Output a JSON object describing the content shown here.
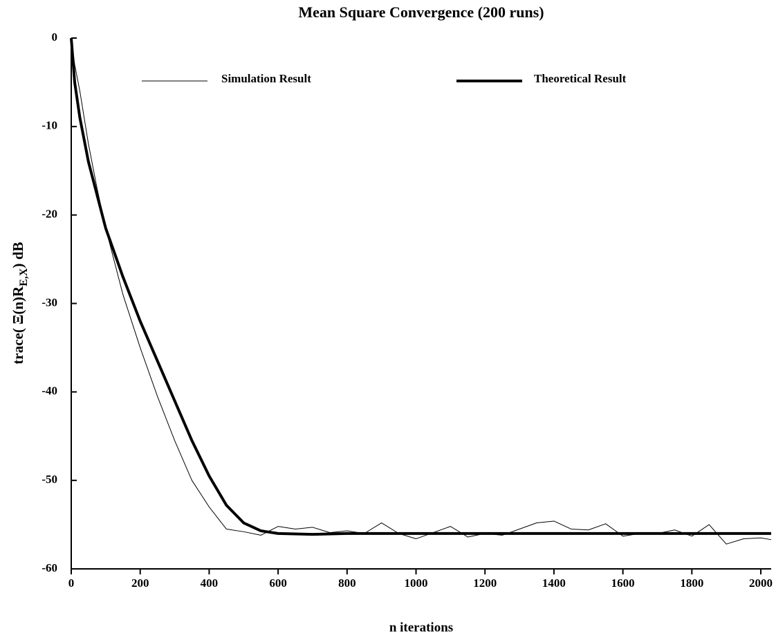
{
  "chart_data": {
    "type": "line",
    "title": "Mean Square Convergence (200 runs)",
    "xlabel": "n iterations",
    "ylabel": {
      "main": "trace( Ξ(n)R",
      "sub": "E,X",
      "end": ") dB"
    },
    "xlim": [
      0,
      2030
    ],
    "ylim": [
      -60,
      0
    ],
    "xticks": [
      0,
      200,
      400,
      600,
      800,
      1000,
      1200,
      1400,
      1600,
      1800,
      2000
    ],
    "yticks": [
      0,
      -10,
      -20,
      -30,
      -40,
      -50,
      -60
    ],
    "legend": "top",
    "grid": false,
    "series": [
      {
        "name": "Simulation Result",
        "color": "#000000",
        "width": 1,
        "x": [
          0,
          10,
          25,
          50,
          75,
          100,
          150,
          200,
          250,
          300,
          350,
          400,
          450,
          500,
          550,
          600,
          650,
          700,
          750,
          800,
          850,
          900,
          950,
          1000,
          1050,
          1100,
          1150,
          1200,
          1250,
          1300,
          1350,
          1400,
          1450,
          1500,
          1550,
          1600,
          1650,
          1700,
          1750,
          1800,
          1850,
          1900,
          1950,
          2000,
          2030
        ],
        "values": [
          0,
          -3,
          -6,
          -12,
          -17,
          -21.5,
          -29,
          -35,
          -40.5,
          -45.5,
          -50,
          -53,
          -55.5,
          -55.8,
          -56.2,
          -55.2,
          -55.5,
          -55.3,
          -55.9,
          -55.7,
          -56,
          -54.8,
          -56,
          -56.6,
          -55.9,
          -55.2,
          -56.4,
          -56,
          -56.2,
          -55.5,
          -54.8,
          -54.6,
          -55.5,
          -55.6,
          -54.9,
          -56.3,
          -56,
          -56,
          -55.6,
          -56.3,
          -55,
          -57.2,
          -56.6,
          -56.5,
          -56.7
        ]
      },
      {
        "name": "Theoretical Result",
        "color": "#000000",
        "width": 4,
        "x": [
          0,
          10,
          25,
          50,
          100,
          150,
          200,
          250,
          300,
          350,
          400,
          450,
          500,
          550,
          600,
          700,
          800,
          2030
        ],
        "values": [
          0,
          -5,
          -9,
          -14,
          -21.5,
          -27,
          -32,
          -36.5,
          -41,
          -45.5,
          -49.5,
          -52.8,
          -54.8,
          -55.7,
          -56,
          -56.1,
          -56,
          -56
        ]
      }
    ]
  }
}
